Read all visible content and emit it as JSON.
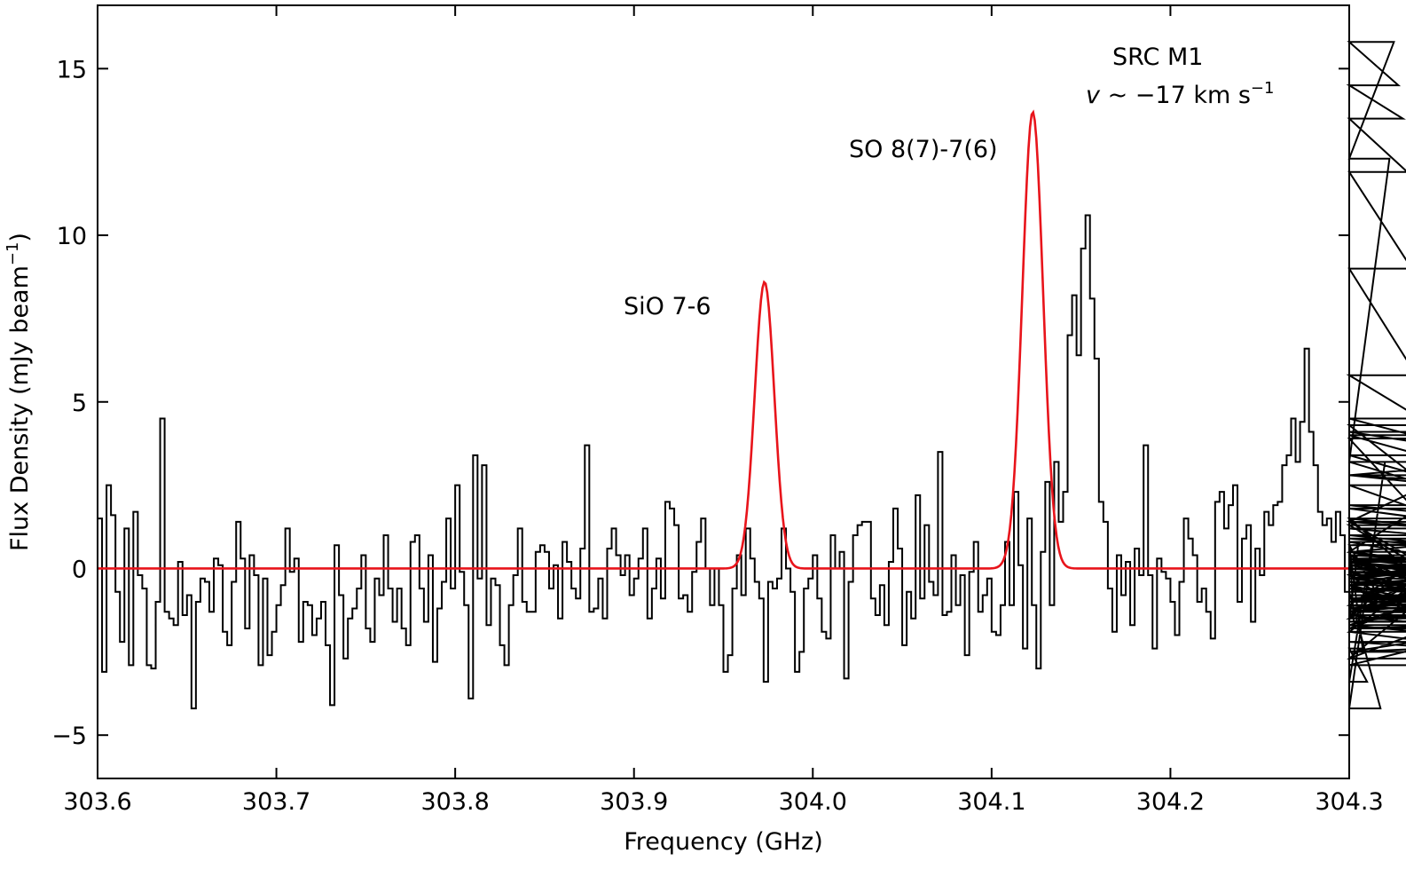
{
  "chart_data": {
    "type": "line",
    "xlabel": "Frequency (GHz)",
    "ylabel": "Flux Density (mJy beam",
    "ylabel_sup": "−1",
    "ylabel_close": ")",
    "xlim": [
      303.6,
      304.3
    ],
    "ylim": [
      -6.3,
      16.9
    ],
    "x_ticks": [
      303.6,
      303.7,
      303.8,
      303.9,
      304.0,
      304.1,
      304.2,
      304.3
    ],
    "x_tick_labels": [
      "303.6",
      "303.7",
      "303.8",
      "303.9",
      "304.0",
      "304.1",
      "304.2",
      "304.3"
    ],
    "y_ticks": [
      -5,
      0,
      5,
      10,
      15
    ],
    "y_tick_labels": [
      "−5",
      "0",
      "5",
      "10",
      "15"
    ],
    "grid": false,
    "legend": "none",
    "annotations": {
      "source": "SRC M1",
      "velocity_v": "v",
      "velocity_rest": " ~ −17 km s",
      "velocity_sup": "−1",
      "line1": "SiO 7-6",
      "line2": "SO 8(7)-7(6)"
    },
    "series": [
      {
        "style": "step",
        "color": "#000000",
        "x_start": 303.6,
        "channel_width": 0.0025,
        "values": [
          1.5,
          -3.1,
          2.5,
          1.6,
          -0.7,
          -2.2,
          1.2,
          -2.9,
          1.7,
          -0.2,
          -0.6,
          -2.9,
          -3.0,
          -1.0,
          4.5,
          -1.3,
          -1.5,
          -1.7,
          0.2,
          -1.4,
          -0.8,
          -4.2,
          -1.0,
          -0.3,
          -0.4,
          -1.3,
          0.3,
          0.1,
          -1.9,
          -2.3,
          -0.4,
          1.4,
          0.3,
          -1.8,
          0.4,
          -0.2,
          -2.9,
          -0.3,
          -2.6,
          -1.9,
          -1.1,
          -0.5,
          1.2,
          -0.1,
          0.3,
          -2.2,
          -1.0,
          -1.1,
          -2.0,
          -1.5,
          -1.0,
          -2.3,
          -4.1,
          0.7,
          -0.8,
          -2.7,
          -1.5,
          -1.2,
          -0.6,
          0.4,
          -1.8,
          -2.2,
          -0.3,
          -0.8,
          1.0,
          -0.6,
          -1.6,
          -0.6,
          -1.8,
          -2.3,
          0.8,
          1.0,
          -0.6,
          -1.6,
          0.4,
          -2.8,
          -1.2,
          -0.4,
          1.5,
          -0.6,
          2.5,
          -0.1,
          -1.1,
          -3.9,
          3.4,
          -0.3,
          3.1,
          -1.7,
          -0.3,
          -0.5,
          -2.3,
          -2.9,
          -1.1,
          -0.2,
          1.2,
          -1.0,
          -1.3,
          -1.3,
          0.5,
          0.7,
          0.5,
          -0.6,
          0.1,
          -1.5,
          0.8,
          0.2,
          -0.6,
          -0.9,
          0.6,
          3.7,
          -1.3,
          -1.2,
          -0.3,
          -1.5,
          0.6,
          1.2,
          0.4,
          -0.2,
          0.4,
          -0.8,
          -0.3,
          0.3,
          1.2,
          -1.5,
          -0.6,
          0.3,
          -0.9,
          2.0,
          1.8,
          1.3,
          -0.9,
          -0.8,
          -1.3,
          -0.1,
          0.8,
          1.5,
          0.0,
          -1.1,
          0.0,
          -1.1,
          -3.1,
          -2.6,
          -0.6,
          0.4,
          -0.8,
          1.2,
          0.3,
          -0.4,
          -0.9,
          -3.4,
          -0.4,
          -0.6,
          -0.3,
          1.2,
          0.0,
          -0.7,
          -3.1,
          -2.5,
          -0.6,
          -0.3,
          0.4,
          -0.9,
          -1.9,
          -2.1,
          1.0,
          0.0,
          0.5,
          -3.3,
          -0.4,
          1.0,
          1.3,
          1.4,
          1.4,
          -0.9,
          -1.4,
          -0.5,
          -1.7,
          0.2,
          1.8,
          0.6,
          -2.3,
          -0.7,
          -1.5,
          2.2,
          -0.9,
          1.3,
          -0.4,
          -0.8,
          3.5,
          -1.4,
          -1.3,
          0.4,
          -1.1,
          -0.2,
          -2.6,
          -0.1,
          0.8,
          -1.3,
          -0.8,
          -0.3,
          -1.9,
          -2.0,
          -1.1,
          0.8,
          -1.1,
          2.3,
          0.1,
          -2.4,
          1.5,
          -1.1,
          -3.0,
          0.5,
          2.6,
          -1.1,
          3.2,
          1.4,
          2.3,
          7.0,
          8.2,
          6.4,
          9.6,
          10.6,
          8.1,
          6.3,
          2.0,
          1.4,
          -0.6,
          -1.9,
          0.4,
          -0.8,
          0.2,
          -1.7,
          0.6,
          -0.2,
          3.7,
          -0.2,
          -2.4,
          0.3,
          -0.1,
          -0.3,
          -1.0,
          -2.0,
          -0.4,
          1.5,
          0.9,
          0.4,
          -1.0,
          -0.6,
          -1.3,
          -2.1,
          2.0,
          2.3,
          1.2,
          1.9,
          2.5,
          -1.0,
          0.9,
          1.3,
          -1.6,
          0.6,
          -0.2,
          1.7,
          1.3,
          1.9,
          2.0,
          3.1,
          3.4,
          4.5,
          3.2,
          4.4,
          6.6,
          4.1,
          3.1,
          1.7,
          1.3,
          1.5,
          0.8,
          1.7,
          1.0,
          -0.7,
          0.8,
          -1.6,
          0.7,
          -2.4,
          -3.4,
          0.7,
          -0.7,
          -4.2,
          3.2,
          12.3,
          15.8,
          14.5,
          13.5,
          11.9,
          9.0,
          5.8,
          4.5,
          3.9,
          1.3,
          -0.2,
          -1.9,
          0.2,
          -0.6,
          -1.5,
          1.5,
          -1.4,
          0.5,
          -0.1,
          -1.0,
          0.2,
          0.2,
          0.4,
          -1.3,
          -0.9,
          -1.5,
          -1.3,
          0.3,
          -1.5,
          1.4,
          -1.6,
          -1.1,
          2.5,
          0.5,
          4.1,
          3.2,
          1.4,
          4.3,
          -0.6,
          -1.9,
          -2.7,
          2.8,
          3.4,
          1.4,
          0.9,
          0.3,
          -0.5,
          -2.2,
          -2.7,
          0.2,
          -0.5,
          0.2,
          -1.1,
          -1.7,
          -2.5,
          -1.2,
          -0.6,
          -0.6,
          -0.9,
          -0.3,
          1.2,
          0.4,
          -0.1,
          -0.6,
          -1.2,
          -0.4,
          -1.6,
          -1.5,
          -1.3,
          -1.2,
          -0.4,
          -0.8,
          -0.9,
          -1.3,
          -1.1,
          -0.9,
          -1.2,
          0.3,
          -0.5,
          1.8,
          0.2,
          -1.0,
          0.0,
          -1.0,
          2.8,
          1.5,
          0.2,
          -1.3,
          -1.4,
          -2.9,
          0.3,
          -0.3,
          0.8,
          -1.7,
          2.8,
          1.9,
          0.5,
          -1.2,
          -1.0,
          0.7,
          1.0,
          1.0,
          -0.5,
          0.5,
          1.8,
          -0.2,
          0.4,
          -0.3,
          -1.8,
          4.0,
          -0.4,
          -0.4,
          -2.5,
          -1.8,
          -1.3,
          0.1,
          0.1,
          -2.9
        ]
      },
      {
        "name": "",
        "style": "gaussian-fit",
        "color": "#e8141b",
        "baseline": 0,
        "x_samples": 800,
        "components": [
          {
            "center": 303.973,
            "amplitude": 8.6,
            "sigma": 0.0055
          },
          {
            "center": 304.123,
            "amplitude": 13.7,
            "sigma": 0.0058
          }
        ]
      }
    ]
  }
}
